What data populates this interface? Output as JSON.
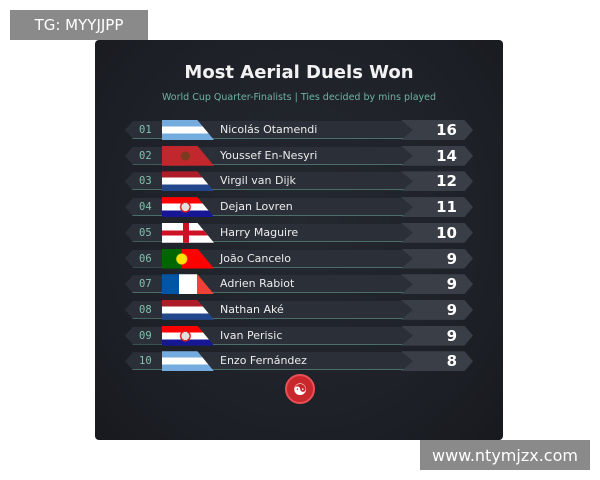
{
  "watermarks": {
    "top_left": "TG: MYYJJPP",
    "bottom_right": "www.ntymjzx.com"
  },
  "title": "Most Aerial Duels Won",
  "subtitle": "World Cup Quarter-Finalists | Ties decided by mins played",
  "rows": [
    {
      "rank": "01",
      "flag": "argentina",
      "name": "Nicolás Otamendi",
      "value": "16"
    },
    {
      "rank": "02",
      "flag": "morocco",
      "name": "Youssef En-Nesyri",
      "value": "14"
    },
    {
      "rank": "03",
      "flag": "netherlands",
      "name": "Virgil van Dijk",
      "value": "12"
    },
    {
      "rank": "04",
      "flag": "croatia",
      "name": "Dejan Lovren",
      "value": "11"
    },
    {
      "rank": "05",
      "flag": "england",
      "name": "Harry Maguire",
      "value": "10"
    },
    {
      "rank": "06",
      "flag": "portugal",
      "name": "João Cancelo",
      "value": "9"
    },
    {
      "rank": "07",
      "flag": "france",
      "name": "Adrien Rabiot",
      "value": "9"
    },
    {
      "rank": "08",
      "flag": "netherlands",
      "name": "Nathan Aké",
      "value": "9"
    },
    {
      "rank": "09",
      "flag": "croatia",
      "name": "Ivan Perisic",
      "value": "9"
    },
    {
      "rank": "10",
      "flag": "argentina",
      "name": "Enzo Fernández",
      "value": "8"
    }
  ],
  "logo_icon": "swirl-logo-icon"
}
